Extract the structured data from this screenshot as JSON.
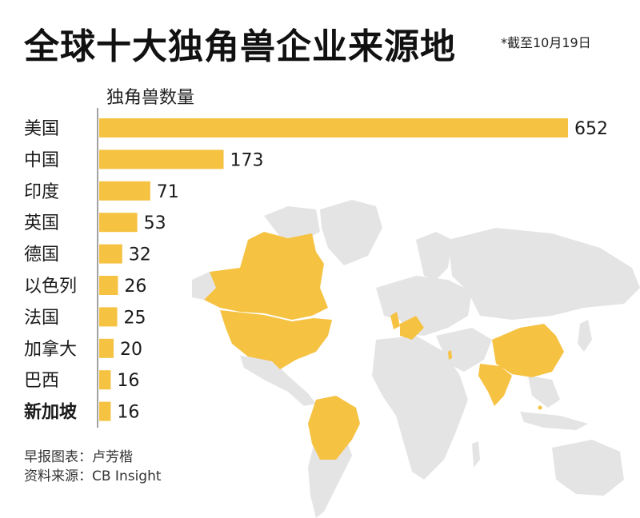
{
  "header": {
    "title": "全球十大独角兽企业来源地",
    "date_note": "*截至10月19日"
  },
  "chart_data": {
    "type": "bar",
    "orientation": "horizontal",
    "title": "全球十大独角兽企业来源地",
    "xlabel": "独角兽数量",
    "categories": [
      "美国",
      "中国",
      "印度",
      "英国",
      "德国",
      "以色列",
      "法国",
      "加拿大",
      "巴西",
      "新加坡"
    ],
    "values": [
      652,
      173,
      71,
      53,
      32,
      26,
      25,
      20,
      16,
      16
    ],
    "bold_categories": [
      "新加坡"
    ],
    "xlim": [
      0,
      652
    ],
    "bar_color": "#f5c242",
    "grid": false,
    "legend": "none"
  },
  "footer": {
    "author": "早报图表：卢芳楷",
    "source": "资料来源：CB Insight"
  },
  "colors": {
    "accent": "#f5c242",
    "map_land": "#e3e3e3",
    "text": "#1a1a1a"
  }
}
